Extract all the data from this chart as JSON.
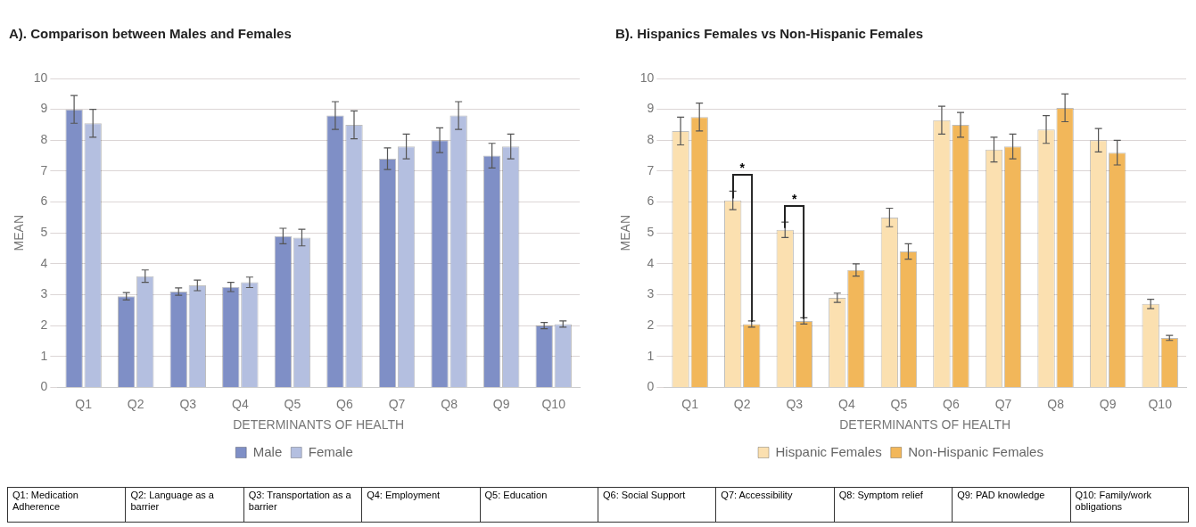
{
  "chart_data": [
    {
      "type": "bar",
      "title": "A). Comparison between Males and Females",
      "xlabel": "DETERMINANTS OF HEALTH",
      "ylabel": "MEAN",
      "categories": [
        "Q1",
        "Q2",
        "Q3",
        "Q4",
        "Q5",
        "Q6",
        "Q7",
        "Q8",
        "Q9",
        "Q10"
      ],
      "ylim": [
        0,
        10
      ],
      "yticks": [
        0,
        1,
        2,
        3,
        4,
        5,
        6,
        7,
        8,
        9,
        10
      ],
      "grid": "y",
      "legend": "bottom",
      "series": [
        {
          "name": "Male",
          "color": "#7f8fc6",
          "values": [
            9.0,
            2.95,
            3.1,
            3.25,
            4.9,
            8.8,
            7.4,
            8.0,
            7.5,
            2.0
          ],
          "errors": [
            0.45,
            0.12,
            0.12,
            0.15,
            0.25,
            0.45,
            0.35,
            0.4,
            0.4,
            0.1
          ]
        },
        {
          "name": "Female",
          "color": "#b4bfe0",
          "values": [
            8.55,
            3.6,
            3.3,
            3.4,
            4.85,
            8.5,
            7.8,
            8.8,
            7.8,
            2.05
          ],
          "errors": [
            0.45,
            0.2,
            0.17,
            0.17,
            0.27,
            0.45,
            0.4,
            0.45,
            0.4,
            0.1
          ]
        }
      ]
    },
    {
      "type": "bar",
      "title": "B). Hispanics Females vs Non-Hispanic Females",
      "xlabel": "DETERMINANTS OF HEALTH",
      "ylabel": "MEAN",
      "categories": [
        "Q1",
        "Q2",
        "Q3",
        "Q4",
        "Q5",
        "Q6",
        "Q7",
        "Q8",
        "Q9",
        "Q10"
      ],
      "ylim": [
        0,
        10
      ],
      "yticks": [
        0,
        1,
        2,
        3,
        4,
        5,
        6,
        7,
        8,
        9,
        10
      ],
      "grid": "y",
      "legend": "bottom",
      "series": [
        {
          "name": "Hispanic Females",
          "color": "#fbe0b0",
          "values": [
            8.3,
            6.05,
            5.1,
            2.9,
            5.5,
            8.65,
            7.7,
            8.35,
            8.0,
            2.7
          ],
          "errors": [
            0.45,
            0.3,
            0.25,
            0.15,
            0.3,
            0.45,
            0.4,
            0.45,
            0.38,
            0.15
          ]
        },
        {
          "name": "Non-Hispanic Females",
          "color": "#f2b75a",
          "values": [
            8.75,
            2.05,
            2.15,
            3.8,
            4.4,
            8.5,
            7.8,
            9.05,
            7.6,
            1.6
          ],
          "errors": [
            0.45,
            0.1,
            0.1,
            0.2,
            0.25,
            0.4,
            0.4,
            0.45,
            0.4,
            0.08
          ]
        }
      ],
      "annotations": [
        "*",
        "*"
      ]
    },
    {
      "type": "other",
      "annotations": [
        "Q1: Medication Adherence",
        "Q2: Language as a barrier",
        "Q3: Transportation as a barrier",
        "Q4: Employment",
        "Q5: Education",
        "Q6: Social Support",
        "Q7: Accessibility",
        "Q8: Symptom relief",
        "Q9: PAD knowledge",
        "Q10: Family/work obligations"
      ]
    }
  ]
}
